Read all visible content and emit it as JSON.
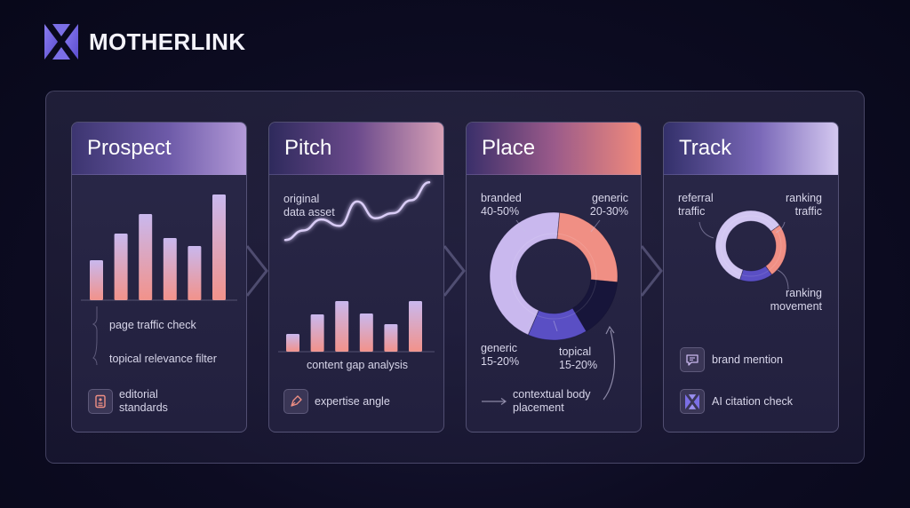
{
  "brand": {
    "name": "MOTHERLINK",
    "logo_icon": "motherlink-logo-icon"
  },
  "colors": {
    "lavender": "#c9b8ee",
    "coral": "#f08f84",
    "indigo": "#5a4fc4",
    "dark": "#141230"
  },
  "steps": [
    {
      "title": "Prospect",
      "annotations": [
        "page traffic check",
        "topical relevance filter"
      ],
      "feature": {
        "icon": "document-icon",
        "label_lines": [
          "editorial",
          "standards"
        ]
      }
    },
    {
      "title": "Pitch",
      "curve_label_lines": [
        "original",
        "data asset"
      ],
      "caption": "content gap analysis",
      "feature": {
        "icon": "pen-nib-icon",
        "label": "expertise angle"
      }
    },
    {
      "title": "Place",
      "slice_labels": [
        {
          "lines": [
            "branded",
            "40-50%"
          ]
        },
        {
          "lines": [
            "generic",
            "20-30%"
          ]
        },
        {
          "lines": [
            "generic",
            "15-20%"
          ]
        },
        {
          "lines": [
            "topical",
            "15-20%"
          ]
        }
      ],
      "feature": {
        "icon": "arrow-right-icon",
        "label_lines": [
          "contextual body",
          "placement"
        ]
      }
    },
    {
      "title": "Track",
      "slice_labels": [
        {
          "lines": [
            "referral",
            "traffic"
          ]
        },
        {
          "lines": [
            "ranking",
            "traffic"
          ]
        },
        {
          "lines": [
            "ranking",
            "movement"
          ]
        }
      ],
      "features": [
        {
          "icon": "chat-bubble-icon",
          "label": "brand mention"
        },
        {
          "icon": "motherlink-logo-icon",
          "label": "AI citation check"
        }
      ]
    }
  ],
  "chart_data": [
    {
      "type": "bar",
      "values": [
        45,
        75,
        97,
        70,
        61,
        119
      ],
      "ylim": [
        0,
        125
      ]
    },
    {
      "type": "line",
      "x": [
        0,
        1,
        2,
        3,
        4,
        5,
        6,
        7,
        8
      ],
      "values": [
        30,
        45,
        62,
        52,
        90,
        64,
        72,
        92,
        120
      ],
      "ylim": [
        0,
        130
      ]
    },
    {
      "type": "bar",
      "values": [
        20,
        42,
        57,
        43,
        31,
        57
      ],
      "ylim": [
        0,
        60
      ]
    },
    {
      "type": "pie",
      "slices": [
        {
          "value": 45,
          "color": "#c9b8ee"
        },
        {
          "value": 25,
          "color": "#f08f84"
        },
        {
          "value": 15,
          "color": "#17153a"
        },
        {
          "value": 15,
          "color": "#5a4fc4"
        }
      ]
    },
    {
      "type": "pie",
      "slices": [
        {
          "value": 60,
          "color": "#d2c6f2"
        },
        {
          "value": 25,
          "color": "#f08f84"
        },
        {
          "value": 15,
          "color": "#5a4fc4"
        }
      ]
    }
  ]
}
